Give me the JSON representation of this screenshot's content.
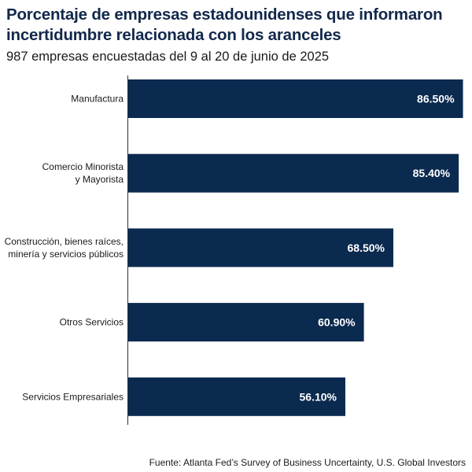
{
  "chart_data": {
    "type": "bar",
    "orientation": "horizontal",
    "title": "Porcentaje de empresas estadounidenses que informaron incertidumbre relacionada con los aranceles",
    "subtitle": "987 empresas encuestadas del 9 al 20 de junio de 2025",
    "categories": [
      "Manufactura",
      "Comercio Minorista y Mayorista",
      "Construcción, bienes raíces, minería y servicios públicos",
      "Otros Servicios",
      "Servicios Empresariales"
    ],
    "category_lines": [
      [
        "Manufactura"
      ],
      [
        "Comercio Minorista",
        "y Mayorista"
      ],
      [
        "Construcción, bienes raíces,",
        "minería y servicios públicos"
      ],
      [
        "Otros Servicios"
      ],
      [
        "Servicios Empresariales"
      ]
    ],
    "values": [
      86.5,
      85.4,
      68.5,
      60.9,
      56.1
    ],
    "value_labels": [
      "86.50%",
      "85.40%",
      "68.50%",
      "60.90%",
      "56.10%"
    ],
    "xlim": [
      0,
      87
    ],
    "unit": "%",
    "bar_color": "#0b2a4f",
    "grid": false,
    "source": "Fuente: Atlanta Fed’s Survey of Business Uncertainty, U.S. Global Investors"
  }
}
